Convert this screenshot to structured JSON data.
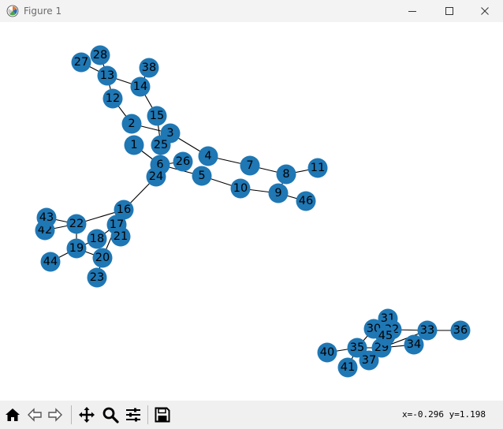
{
  "window": {
    "title": "Figure 1",
    "app_icon": "matplotlib-icon",
    "controls": [
      "minimize-icon",
      "maximize-icon",
      "close-icon"
    ]
  },
  "graph": {
    "node_color": "#1f77b4",
    "edge_color": "#000000",
    "label_color": "#000000",
    "nodes": [
      {
        "id": "1"
      },
      {
        "id": "2"
      },
      {
        "id": "3"
      },
      {
        "id": "4"
      },
      {
        "id": "5"
      },
      {
        "id": "6"
      },
      {
        "id": "7"
      },
      {
        "id": "8"
      },
      {
        "id": "9"
      },
      {
        "id": "10"
      },
      {
        "id": "11"
      },
      {
        "id": "12"
      },
      {
        "id": "13"
      },
      {
        "id": "14"
      },
      {
        "id": "15"
      },
      {
        "id": "16"
      },
      {
        "id": "17"
      },
      {
        "id": "18"
      },
      {
        "id": "19"
      },
      {
        "id": "20"
      },
      {
        "id": "21"
      },
      {
        "id": "22"
      },
      {
        "id": "23"
      },
      {
        "id": "24"
      },
      {
        "id": "25"
      },
      {
        "id": "26"
      },
      {
        "id": "27"
      },
      {
        "id": "28"
      },
      {
        "id": "29"
      },
      {
        "id": "30"
      },
      {
        "id": "31"
      },
      {
        "id": "32"
      },
      {
        "id": "33"
      },
      {
        "id": "34"
      },
      {
        "id": "35"
      },
      {
        "id": "36"
      },
      {
        "id": "37"
      },
      {
        "id": "38"
      },
      {
        "id": "40"
      },
      {
        "id": "41"
      },
      {
        "id": "42"
      },
      {
        "id": "43"
      },
      {
        "id": "44"
      },
      {
        "id": "45"
      },
      {
        "id": "46"
      }
    ],
    "edges": [
      [
        "1",
        "6"
      ],
      [
        "2",
        "12"
      ],
      [
        "2",
        "3"
      ],
      [
        "12",
        "13"
      ],
      [
        "13",
        "27"
      ],
      [
        "13",
        "28"
      ],
      [
        "13",
        "14"
      ],
      [
        "14",
        "38"
      ],
      [
        "14",
        "15"
      ],
      [
        "15",
        "25"
      ],
      [
        "3",
        "25"
      ],
      [
        "3",
        "4"
      ],
      [
        "4",
        "7"
      ],
      [
        "7",
        "8"
      ],
      [
        "8",
        "11"
      ],
      [
        "8",
        "9"
      ],
      [
        "9",
        "10"
      ],
      [
        "9",
        "46"
      ],
      [
        "10",
        "5"
      ],
      [
        "5",
        "6"
      ],
      [
        "6",
        "24"
      ],
      [
        "6",
        "26"
      ],
      [
        "24",
        "16"
      ],
      [
        "16",
        "22"
      ],
      [
        "22",
        "43"
      ],
      [
        "22",
        "42"
      ],
      [
        "22",
        "19"
      ],
      [
        "17",
        "21"
      ],
      [
        "17",
        "18"
      ],
      [
        "17",
        "20"
      ],
      [
        "18",
        "19"
      ],
      [
        "19",
        "44"
      ],
      [
        "19",
        "20"
      ],
      [
        "20",
        "23"
      ],
      [
        "30",
        "32"
      ],
      [
        "31",
        "45"
      ],
      [
        "32",
        "33"
      ],
      [
        "33",
        "36"
      ],
      [
        "33",
        "29"
      ],
      [
        "29",
        "34"
      ],
      [
        "29",
        "35"
      ],
      [
        "35",
        "40"
      ],
      [
        "35",
        "41"
      ],
      [
        "35",
        "37"
      ],
      [
        "37",
        "45"
      ],
      [
        "30",
        "35"
      ],
      [
        "45",
        "29"
      ]
    ]
  },
  "toolbar": {
    "buttons": [
      {
        "icon": "home-icon",
        "name": "home-button"
      },
      {
        "icon": "back-arrow-icon",
        "name": "back-button"
      },
      {
        "icon": "forward-arrow-icon",
        "name": "forward-button"
      },
      {
        "icon": "pan-move-icon",
        "name": "pan-button"
      },
      {
        "icon": "zoom-magnifier-icon",
        "name": "zoom-button"
      },
      {
        "icon": "configure-subplots-icon",
        "name": "configure-subplots-button"
      },
      {
        "icon": "save-disk-icon",
        "name": "save-button"
      }
    ],
    "coords": "x=-0.296 y=1.198"
  }
}
